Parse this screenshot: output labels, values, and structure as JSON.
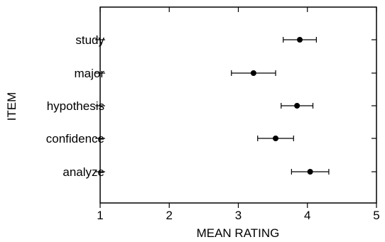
{
  "chart_data": {
    "type": "dot-plot-error-bars",
    "xlabel": "MEAN RATING",
    "ylabel": "ITEM",
    "xlim": [
      1,
      5
    ],
    "xticks": [
      "1",
      "2",
      "3",
      "4",
      "5"
    ],
    "grid": false,
    "points": [
      {
        "label": "study",
        "mean": 3.89,
        "low": 3.65,
        "high": 4.13
      },
      {
        "label": "major",
        "mean": 3.22,
        "low": 2.9,
        "high": 3.54
      },
      {
        "label": "hypothesis",
        "mean": 3.85,
        "low": 3.62,
        "high": 4.08
      },
      {
        "label": "confidence",
        "mean": 3.54,
        "low": 3.28,
        "high": 3.8
      },
      {
        "label": "analyze",
        "mean": 4.04,
        "low": 3.77,
        "high": 4.31
      }
    ]
  }
}
